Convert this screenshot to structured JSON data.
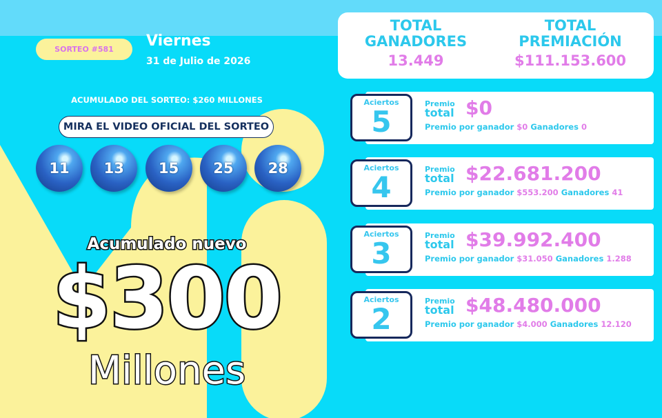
{
  "draw": {
    "label": "SORTEO #581",
    "day": "Viernes",
    "date": "31 de Julio de 2026",
    "accumulated": "ACUMULADO DEL SORTEO: $260 MILLONES",
    "video_button": "MIRA EL VIDEO OFICIAL DEL SORTEO",
    "numbers": [
      "11",
      "13",
      "15",
      "25",
      "28"
    ]
  },
  "jackpot": {
    "caption": "Acumulado nuevo",
    "amount": "$300",
    "unit": "Millones"
  },
  "totals": {
    "winners_label": "TOTAL GANADORES",
    "winners": "13.449",
    "prize_label": "TOTAL PREMIACIÓN",
    "prize": "$111.153.600"
  },
  "tiers": [
    {
      "label": "Aciertos",
      "hits": "5",
      "total_label_top": "Premio",
      "total_label_bottom": "total",
      "total": "$0",
      "per_winner_label": "Premio por ganador",
      "per_winner": "$0",
      "winners_label": "Ganadores",
      "winners": "0"
    },
    {
      "label": "Aciertos",
      "hits": "4",
      "total_label_top": "Premio",
      "total_label_bottom": "total",
      "total": "$22.681.200",
      "per_winner_label": "Premio por ganador",
      "per_winner": "$553.200",
      "winners_label": "Ganadores",
      "winners": "41"
    },
    {
      "label": "Aciertos",
      "hits": "3",
      "total_label_top": "Premio",
      "total_label_bottom": "total",
      "total": "$39.992.400",
      "per_winner_label": "Premio por ganador",
      "per_winner": "$31.050",
      "winners_label": "Ganadores",
      "winners": "1.288"
    },
    {
      "label": "Aciertos",
      "hits": "2",
      "total_label_top": "Premio",
      "total_label_bottom": "total",
      "total": "$48.480.000",
      "per_winner_label": "Premio por ganador",
      "per_winner": "$4.000",
      "winners_label": "Ganadores",
      "winners": "12.120"
    }
  ]
}
